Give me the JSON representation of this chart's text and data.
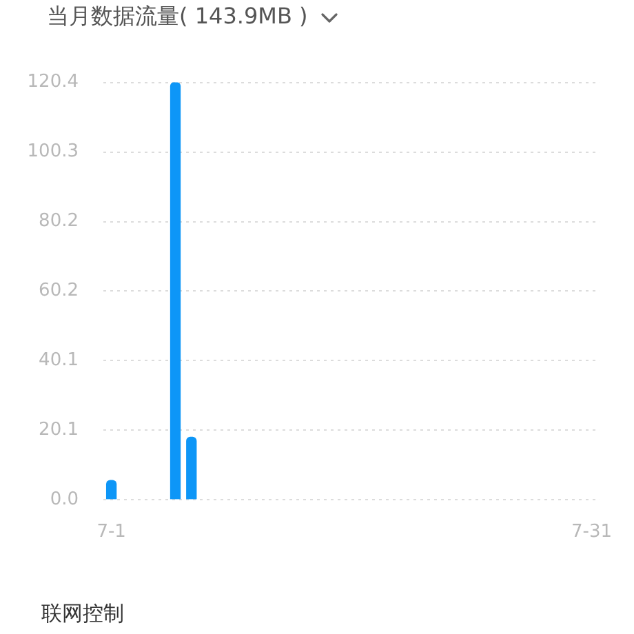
{
  "chart_data": {
    "type": "bar",
    "title": "当月数据流量( 143.9MB )",
    "categories": [
      "7-1",
      null,
      null,
      null,
      null,
      null,
      null,
      null,
      null,
      null,
      null,
      null,
      null,
      null,
      null,
      null,
      null,
      null,
      null,
      null,
      null,
      null,
      null,
      null,
      null,
      null,
      null,
      null,
      null,
      null,
      "7-31"
    ],
    "values": [
      5.5,
      null,
      null,
      null,
      120.4,
      18.0,
      null,
      null,
      null,
      null,
      null,
      null,
      null,
      null,
      null,
      null,
      null,
      null,
      null,
      null,
      null,
      null,
      null,
      null,
      null,
      null,
      null,
      null,
      null,
      null,
      null
    ],
    "color": "#0d96f7",
    "ylim": [
      0,
      120.4
    ],
    "yticks": [
      {
        "value": 0,
        "label": "0.0"
      },
      20.1,
      40.1,
      60.2,
      80.2,
      100.3,
      120.4
    ],
    "grid": "y",
    "annotations": [
      "联网控制"
    ]
  }
}
